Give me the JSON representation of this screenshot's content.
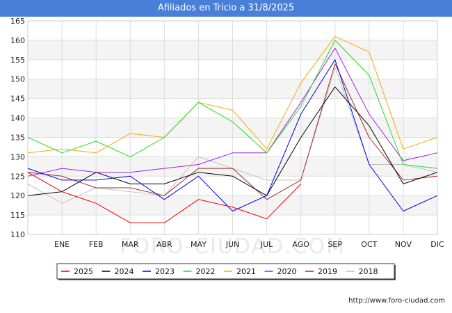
{
  "title": "Afiliados en Tricio a 31/8/2025",
  "footer_url": "http://www.foro-ciudad.com",
  "watermark": "FORO-CIUDAD.COM",
  "chart_data": {
    "type": "line",
    "title": "Afiliados en Tricio a 31/8/2025",
    "xlabel": "",
    "ylabel": "",
    "ylim": [
      110,
      165
    ],
    "yticks": [
      110,
      115,
      120,
      125,
      130,
      135,
      140,
      145,
      150,
      155,
      160,
      165
    ],
    "categories": [
      "",
      "ENE",
      "FEB",
      "MAR",
      "ABR",
      "MAY",
      "JUN",
      "JUL",
      "AGO",
      "SEP",
      "OCT",
      "NOV",
      "DIC"
    ],
    "legend_position": "bottom",
    "grid": true,
    "series": [
      {
        "name": "2025",
        "color": "#ee0000",
        "values": [
          126,
          121,
          118,
          113,
          113,
          119,
          117,
          114,
          123,
          null,
          null,
          null,
          null
        ]
      },
      {
        "name": "2024",
        "color": "#000000",
        "values": [
          120,
          121,
          126,
          123,
          123,
          126,
          125,
          120,
          135,
          148,
          138,
          123,
          126
        ]
      },
      {
        "name": "2023",
        "color": "#0000ee",
        "values": [
          127,
          124,
          124,
          125,
          119,
          125,
          116,
          120,
          141,
          155,
          128,
          116,
          120
        ]
      },
      {
        "name": "2022",
        "color": "#22dd22",
        "values": [
          135,
          131,
          134,
          130,
          135,
          144,
          139,
          131,
          143,
          160,
          151,
          128,
          127
        ]
      },
      {
        "name": "2021",
        "color": "#ffa500",
        "values": [
          131,
          132,
          131,
          136,
          135,
          144,
          142,
          132,
          149,
          161,
          157,
          132,
          135
        ]
      },
      {
        "name": "2020",
        "color": "#a020f0",
        "values": [
          125,
          127,
          126,
          126,
          127,
          128,
          131,
          131,
          144,
          158,
          141,
          129,
          131
        ]
      },
      {
        "name": "2019",
        "color": "#a52a2a",
        "values": [
          126,
          125,
          122,
          122,
          120,
          127,
          127,
          119,
          124,
          154,
          135,
          124,
          125
        ]
      },
      {
        "name": "2018",
        "color": "#c0c0c0",
        "values": [
          123,
          118,
          122,
          121,
          120,
          130,
          127,
          124,
          124,
          153,
          128,
          128,
          126
        ]
      }
    ]
  }
}
